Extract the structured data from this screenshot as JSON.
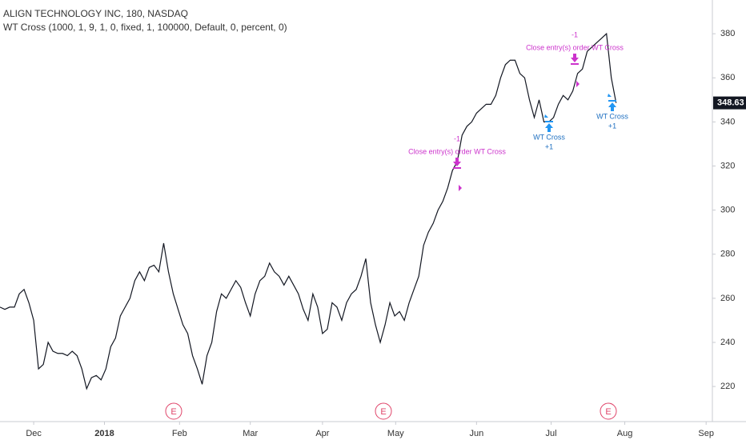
{
  "chart_data": {
    "type": "line",
    "title": "ALIGN TECHNOLOGY INC, 180, NASDAQ",
    "subtitle": "WT Cross (1000, 1, 9, 1, 0, fixed, 1, 100000, Default, 0, percent, 0)",
    "color": "#131722",
    "values": [
      256,
      255,
      256,
      256,
      262,
      264,
      258,
      250,
      228,
      230,
      240,
      236,
      235,
      235,
      234,
      236,
      234,
      228,
      219,
      224,
      225,
      223,
      228,
      238,
      242,
      252,
      256,
      260,
      268,
      272,
      268,
      274,
      275,
      272,
      285,
      272,
      262,
      255,
      248,
      244,
      234,
      228,
      221,
      234,
      240,
      254,
      262,
      260,
      264,
      268,
      265,
      258,
      252,
      262,
      268,
      270,
      276,
      272,
      270,
      266,
      270,
      266,
      262,
      255,
      250,
      262,
      256,
      244,
      246,
      258,
      256,
      250,
      258,
      262,
      264,
      270,
      278,
      258,
      248,
      240,
      248,
      258,
      252,
      254,
      250,
      258,
      264,
      270,
      284,
      290,
      294,
      300,
      304,
      310,
      318,
      322,
      334,
      338,
      340,
      344,
      346,
      348,
      348,
      352,
      360,
      366,
      368,
      368,
      362,
      360,
      350,
      342,
      350,
      340,
      340,
      342,
      348,
      352,
      350,
      354,
      362,
      364,
      372,
      374,
      376,
      378,
      380,
      360,
      348.63
    ],
    "xlim": [
      0,
      148
    ],
    "xticks": [
      {
        "value": 7,
        "label": "Dec"
      },
      {
        "value": 21.7,
        "label": "2018"
      },
      {
        "value": 37.3,
        "label": "Feb"
      },
      {
        "value": 52,
        "label": "Mar"
      },
      {
        "value": 67,
        "label": "Apr"
      },
      {
        "value": 82.2,
        "label": "May"
      },
      {
        "value": 99,
        "label": "Jun"
      },
      {
        "value": 114.5,
        "label": "Jul"
      },
      {
        "value": 129.8,
        "label": "Aug"
      },
      {
        "value": 146.7,
        "label": "Sep"
      }
    ],
    "ylim": [
      204.8,
      395.3
    ],
    "yticks": [
      220,
      240,
      260,
      280,
      300,
      320,
      340,
      360,
      380
    ],
    "grid": false,
    "signals": [
      {
        "label": "-1",
        "text": "Close entry(s) order WT Cross",
        "side": "sell"
      },
      {
        "label": "+1",
        "text": "WT Cross",
        "side": "buy"
      },
      {
        "label": "-1",
        "text": "Close entry(s) order WT Cross",
        "side": "sell"
      },
      {
        "label": "+1",
        "text": "WT Cross",
        "side": "buy"
      }
    ],
    "earnings": [
      "E",
      "E",
      "E"
    ]
  }
}
